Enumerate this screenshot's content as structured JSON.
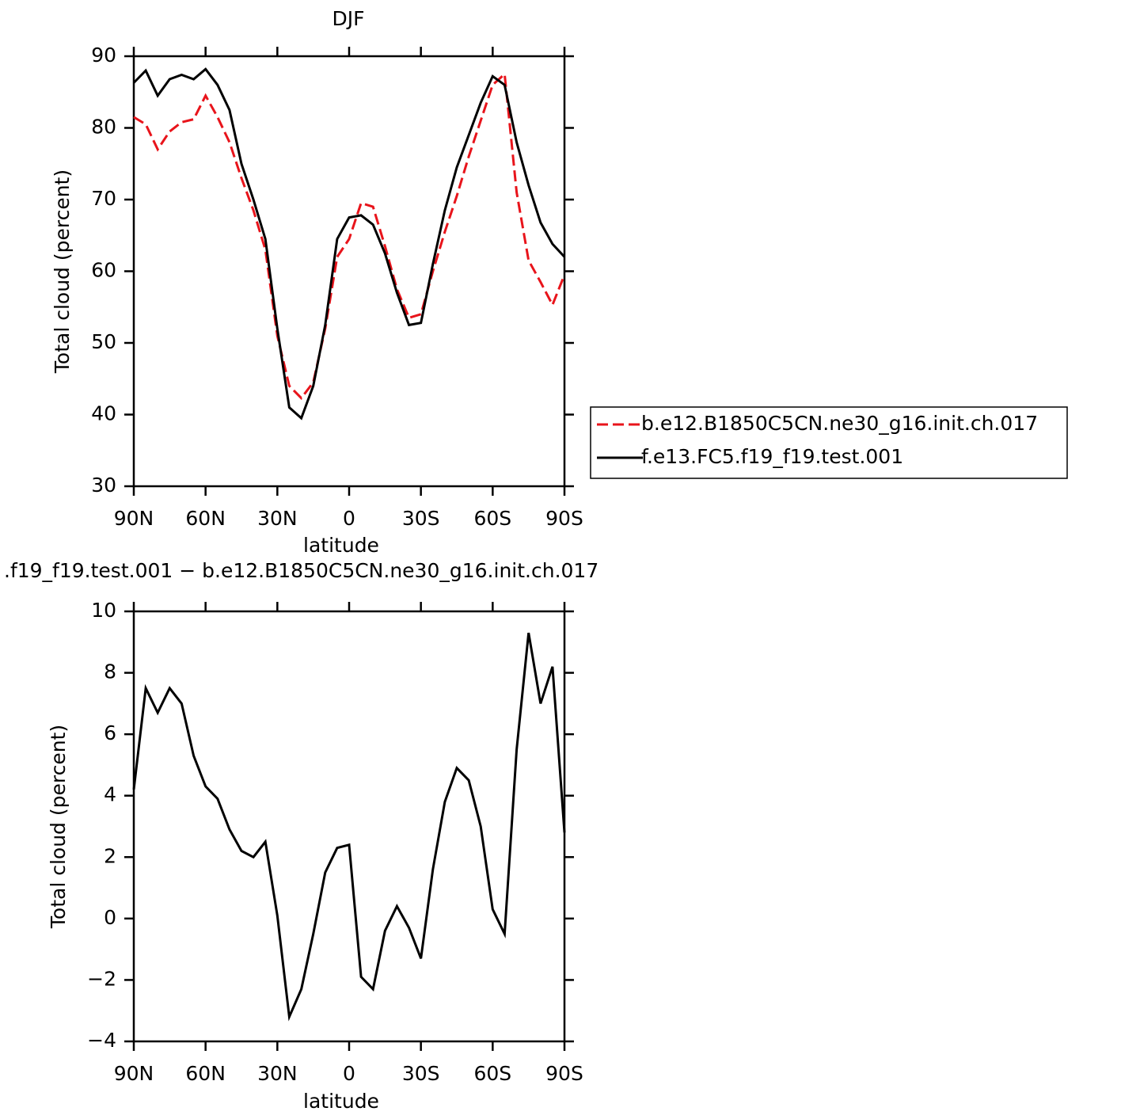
{
  "chart_data": [
    {
      "type": "line",
      "title": "DJF",
      "xlabel": "latitude",
      "ylabel": "Total cloud (percent)",
      "x": [
        90,
        85,
        80,
        75,
        70,
        65,
        60,
        55,
        50,
        45,
        40,
        35,
        30,
        25,
        20,
        15,
        10,
        5,
        0,
        -5,
        -10,
        -15,
        -20,
        -25,
        -30,
        -35,
        -40,
        -45,
        -50,
        -55,
        -60,
        -65,
        -70,
        -75,
        -80,
        -85,
        -90
      ],
      "series": [
        {
          "name": "b.e12.B1850C5CN.ne30_g16.init.ch.017",
          "color": "#e8141b",
          "linestyle": "dashed",
          "values": [
            81.5,
            80.5,
            77,
            79.5,
            80.8,
            81.2,
            84.5,
            81.5,
            78,
            73,
            68.5,
            63,
            51,
            44,
            42.3,
            44.5,
            52,
            62,
            64.5,
            69.5,
            69,
            63.5,
            57.5,
            53.5,
            54,
            60,
            65.5,
            70.5,
            76,
            81,
            86,
            87.5,
            71,
            61.5,
            58.5,
            55.3,
            59.5
          ]
        },
        {
          "name": "f.e13.FC5.f19_f19.test.001",
          "color": "#000000",
          "linestyle": "solid",
          "values": [
            86.3,
            88,
            84.5,
            86.8,
            87.4,
            86.8,
            88.2,
            86,
            82.5,
            75,
            70,
            64.5,
            52,
            41,
            39.5,
            44,
            52.5,
            64.5,
            67.5,
            67.8,
            66.5,
            62.5,
            57,
            52.5,
            52.8,
            61,
            68.5,
            74.5,
            79,
            83.5,
            87.2,
            86,
            78,
            72,
            66.8,
            63.8,
            62
          ]
        }
      ],
      "xlim": [
        90,
        -90
      ],
      "xticks": [
        {
          "value": 90,
          "label": "90N"
        },
        {
          "value": 60,
          "label": "60N"
        },
        {
          "value": 30,
          "label": "30N"
        },
        0,
        {
          "value": -30,
          "label": "30S"
        },
        {
          "value": -60,
          "label": "60S"
        },
        {
          "value": -90,
          "label": "90S"
        }
      ],
      "ylim": [
        30,
        90
      ],
      "yticks": [
        30,
        40,
        50,
        60,
        70,
        80,
        90
      ]
    },
    {
      "type": "line",
      "title": ".f19_f19.test.001 − b.e12.B1850C5CN.ne30_g16.init.ch.017",
      "xlabel": "latitude",
      "ylabel": "Total cloud (percent)",
      "x": [
        90,
        85,
        80,
        75,
        70,
        65,
        60,
        55,
        50,
        45,
        40,
        35,
        30,
        25,
        20,
        15,
        10,
        5,
        0,
        -5,
        -10,
        -15,
        -20,
        -25,
        -30,
        -35,
        -40,
        -45,
        -50,
        -55,
        -60,
        -65,
        -70,
        -75,
        -80,
        -85,
        -90
      ],
      "values": [
        4.2,
        7.5,
        6.7,
        7.5,
        7.0,
        5.3,
        4.3,
        3.9,
        2.9,
        2.2,
        2.0,
        2.5,
        0.1,
        -3.2,
        -2.3,
        -0.5,
        1.5,
        2.3,
        2.4,
        -1.9,
        -2.3,
        -0.4,
        0.4,
        -0.3,
        -1.3,
        1.6,
        3.8,
        4.9,
        4.5,
        3.0,
        0.3,
        -0.5,
        5.5,
        9.3,
        7.0,
        8.2,
        2.8
      ],
      "color": "#000000",
      "xlim": [
        90,
        -90
      ],
      "xticks": [
        {
          "value": 90,
          "label": "90N"
        },
        {
          "value": 60,
          "label": "60N"
        },
        {
          "value": 30,
          "label": "30N"
        },
        0,
        {
          "value": -30,
          "label": "30S"
        },
        {
          "value": -60,
          "label": "60S"
        },
        {
          "value": -90,
          "label": "90S"
        }
      ],
      "ylim": [
        -4,
        10
      ],
      "yticks": [
        {
          "value": -4,
          "label": "−4"
        },
        {
          "value": -2,
          "label": "−2"
        },
        0,
        2,
        4,
        6,
        8,
        10
      ]
    }
  ]
}
